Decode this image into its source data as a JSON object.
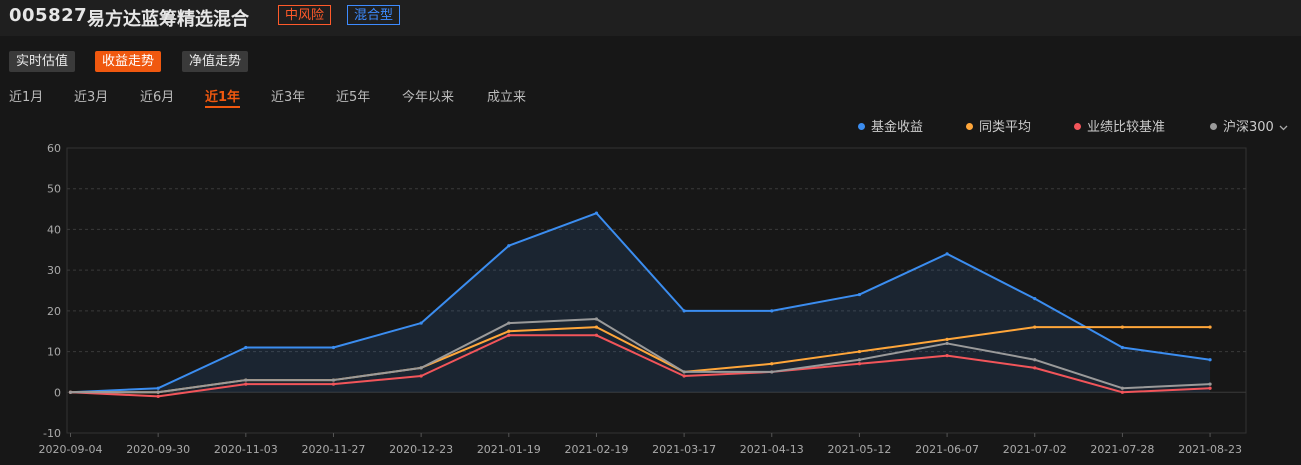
{
  "header": {
    "code": "005827",
    "name": "易方达蓝筹精选混合",
    "risk_tag": "中风险",
    "type_tag": "混合型"
  },
  "view_buttons": [
    "实时估值",
    "收益走势",
    "净值走势"
  ],
  "active_view": "收益走势",
  "periods": [
    "近1月",
    "近3月",
    "近6月",
    "近1年",
    "近3年",
    "近5年",
    "今年以来",
    "成立来"
  ],
  "active_period": "近1年",
  "legend": [
    {
      "label": "基金收益",
      "color": "#3b8df0"
    },
    {
      "label": "同类平均",
      "color": "#ffa63a"
    },
    {
      "label": "业绩比较基准",
      "color": "#f2555a"
    },
    {
      "label": "沪深300",
      "color": "#9a9a9a"
    }
  ],
  "icons": {
    "legend_dropdown": "chevron-down-icon"
  },
  "chart_data": {
    "type": "line",
    "ylim": [
      -10,
      60
    ],
    "yticks": [
      -10,
      0,
      10,
      20,
      30,
      40,
      50,
      60
    ],
    "x": [
      "2020-09-04",
      "2020-09-30",
      "2020-11-03",
      "2020-11-27",
      "2020-12-23",
      "2021-01-19",
      "2021-02-19",
      "2021-03-17",
      "2021-04-13",
      "2021-05-12",
      "2021-06-07",
      "2021-07-02",
      "2021-07-28",
      "2021-08-23"
    ],
    "xticks": [
      "2020-09-04",
      "2020-09-30",
      "2020-11-03",
      "2020-11-27",
      "2020-12-23",
      "2021-01-19",
      "2021-02-19",
      "2021-03-17",
      "2021-04-13",
      "2021-05-12",
      "2021-06-07",
      "2021-07-02",
      "2021-07-28",
      "2021-08-23"
    ],
    "grid": true,
    "legend_position": "top-right",
    "series": [
      {
        "name": "基金收益",
        "color": "#3b8df0",
        "area": true,
        "values": [
          0,
          1,
          11,
          11,
          17,
          36,
          44,
          20,
          20,
          24,
          34,
          23,
          11,
          8
        ]
      },
      {
        "name": "同类平均",
        "color": "#ffa63a",
        "values": [
          0,
          0,
          3,
          3,
          6,
          15,
          16,
          5,
          7,
          10,
          13,
          16,
          16,
          16
        ]
      },
      {
        "name": "业绩比较基准",
        "color": "#f2555a",
        "values": [
          0,
          -1,
          2,
          2,
          4,
          14,
          14,
          4,
          5,
          7,
          9,
          6,
          0,
          1
        ]
      },
      {
        "name": "沪深300",
        "color": "#9a9a9a",
        "values": [
          0,
          0,
          3,
          3,
          6,
          17,
          18,
          5,
          5,
          8,
          12,
          8,
          1,
          2
        ]
      }
    ]
  }
}
